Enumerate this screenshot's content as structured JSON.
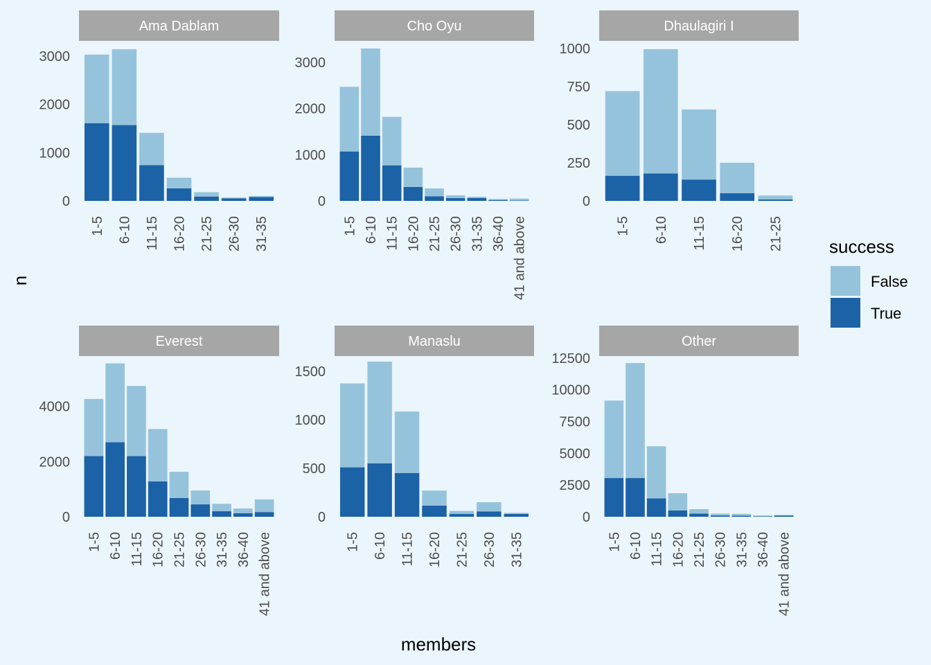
{
  "colors": {
    "background": "#ebf5fc",
    "strip": "#a6a6a6",
    "strip_text": "#ffffff",
    "axis_text": "#4d4d4d",
    "false": "#96c3dc",
    "true": "#1c62a6"
  },
  "labels": {
    "xlabel": "members",
    "ylabel": "n",
    "legend_title": "success"
  },
  "chart_data": [
    {
      "type": "bar",
      "stacked": true,
      "title": "Ama Dablam",
      "categories": [
        "1-5",
        "6-10",
        "11-15",
        "16-20",
        "21-25",
        "26-30",
        "31-35"
      ],
      "series": [
        {
          "name": "False",
          "values": [
            1420,
            1570,
            670,
            220,
            90,
            20,
            20
          ]
        },
        {
          "name": "True",
          "values": [
            1610,
            1570,
            740,
            260,
            90,
            50,
            80
          ]
        }
      ],
      "ylim": [
        0,
        3300
      ],
      "yticks": [
        0,
        1000,
        2000,
        3000
      ]
    },
    {
      "type": "bar",
      "stacked": true,
      "title": "Cho Oyu",
      "categories": [
        "1-5",
        "6-10",
        "11-15",
        "16-20",
        "21-25",
        "26-30",
        "31-35",
        "36-40",
        "41 and above"
      ],
      "series": [
        {
          "name": "False",
          "values": [
            1400,
            1890,
            1050,
            420,
            170,
            60,
            30,
            20,
            40
          ]
        },
        {
          "name": "True",
          "values": [
            1070,
            1410,
            770,
            300,
            100,
            60,
            60,
            20,
            10
          ]
        }
      ],
      "ylim": [
        0,
        3450
      ],
      "yticks": [
        0,
        1000,
        2000,
        3000
      ]
    },
    {
      "type": "bar",
      "stacked": true,
      "title": "Dhaulagiri I",
      "categories": [
        "1-5",
        "6-10",
        "11-15",
        "16-20",
        "21-25"
      ],
      "series": [
        {
          "name": "False",
          "values": [
            555,
            815,
            460,
            200,
            25
          ]
        },
        {
          "name": "True",
          "values": [
            165,
            180,
            140,
            50,
            10
          ]
        }
      ],
      "ylim": [
        0,
        1045
      ],
      "yticks": [
        0,
        250,
        500,
        750,
        1000
      ]
    },
    {
      "type": "bar",
      "stacked": true,
      "title": "Everest",
      "categories": [
        "1-5",
        "6-10",
        "11-15",
        "16-20",
        "21-25",
        "26-30",
        "31-35",
        "36-40",
        "41 and above"
      ],
      "series": [
        {
          "name": "False",
          "values": [
            2070,
            2860,
            2540,
            1900,
            950,
            500,
            270,
            170,
            460
          ]
        },
        {
          "name": "True",
          "values": [
            2200,
            2700,
            2200,
            1280,
            680,
            450,
            200,
            130,
            170
          ]
        }
      ],
      "ylim": [
        0,
        5800
      ],
      "yticks": [
        0,
        2000,
        4000
      ]
    },
    {
      "type": "bar",
      "stacked": true,
      "title": "Manaslu",
      "categories": [
        "1-5",
        "6-10",
        "11-15",
        "16-20",
        "21-25",
        "26-30",
        "31-35"
      ],
      "series": [
        {
          "name": "False",
          "values": [
            865,
            1050,
            635,
            155,
            30,
            95,
            10
          ]
        },
        {
          "name": "True",
          "values": [
            510,
            550,
            450,
            115,
            30,
            55,
            30
          ]
        }
      ],
      "ylim": [
        0,
        1650
      ],
      "yticks": [
        0,
        500,
        1000,
        1500
      ]
    },
    {
      "type": "bar",
      "stacked": true,
      "title": "Other",
      "categories": [
        "1-5",
        "6-10",
        "11-15",
        "16-20",
        "21-25",
        "26-30",
        "31-35",
        "36-40",
        "41 and above"
      ],
      "series": [
        {
          "name": "False",
          "values": [
            6100,
            9050,
            4100,
            1350,
            350,
            150,
            150,
            60,
            40
          ]
        },
        {
          "name": "True",
          "values": [
            3050,
            3050,
            1450,
            500,
            250,
            100,
            80,
            40,
            100
          ]
        }
      ],
      "ylim": [
        0,
        12600
      ],
      "yticks": [
        0,
        2500,
        5000,
        7500,
        10000,
        12500
      ]
    }
  ]
}
